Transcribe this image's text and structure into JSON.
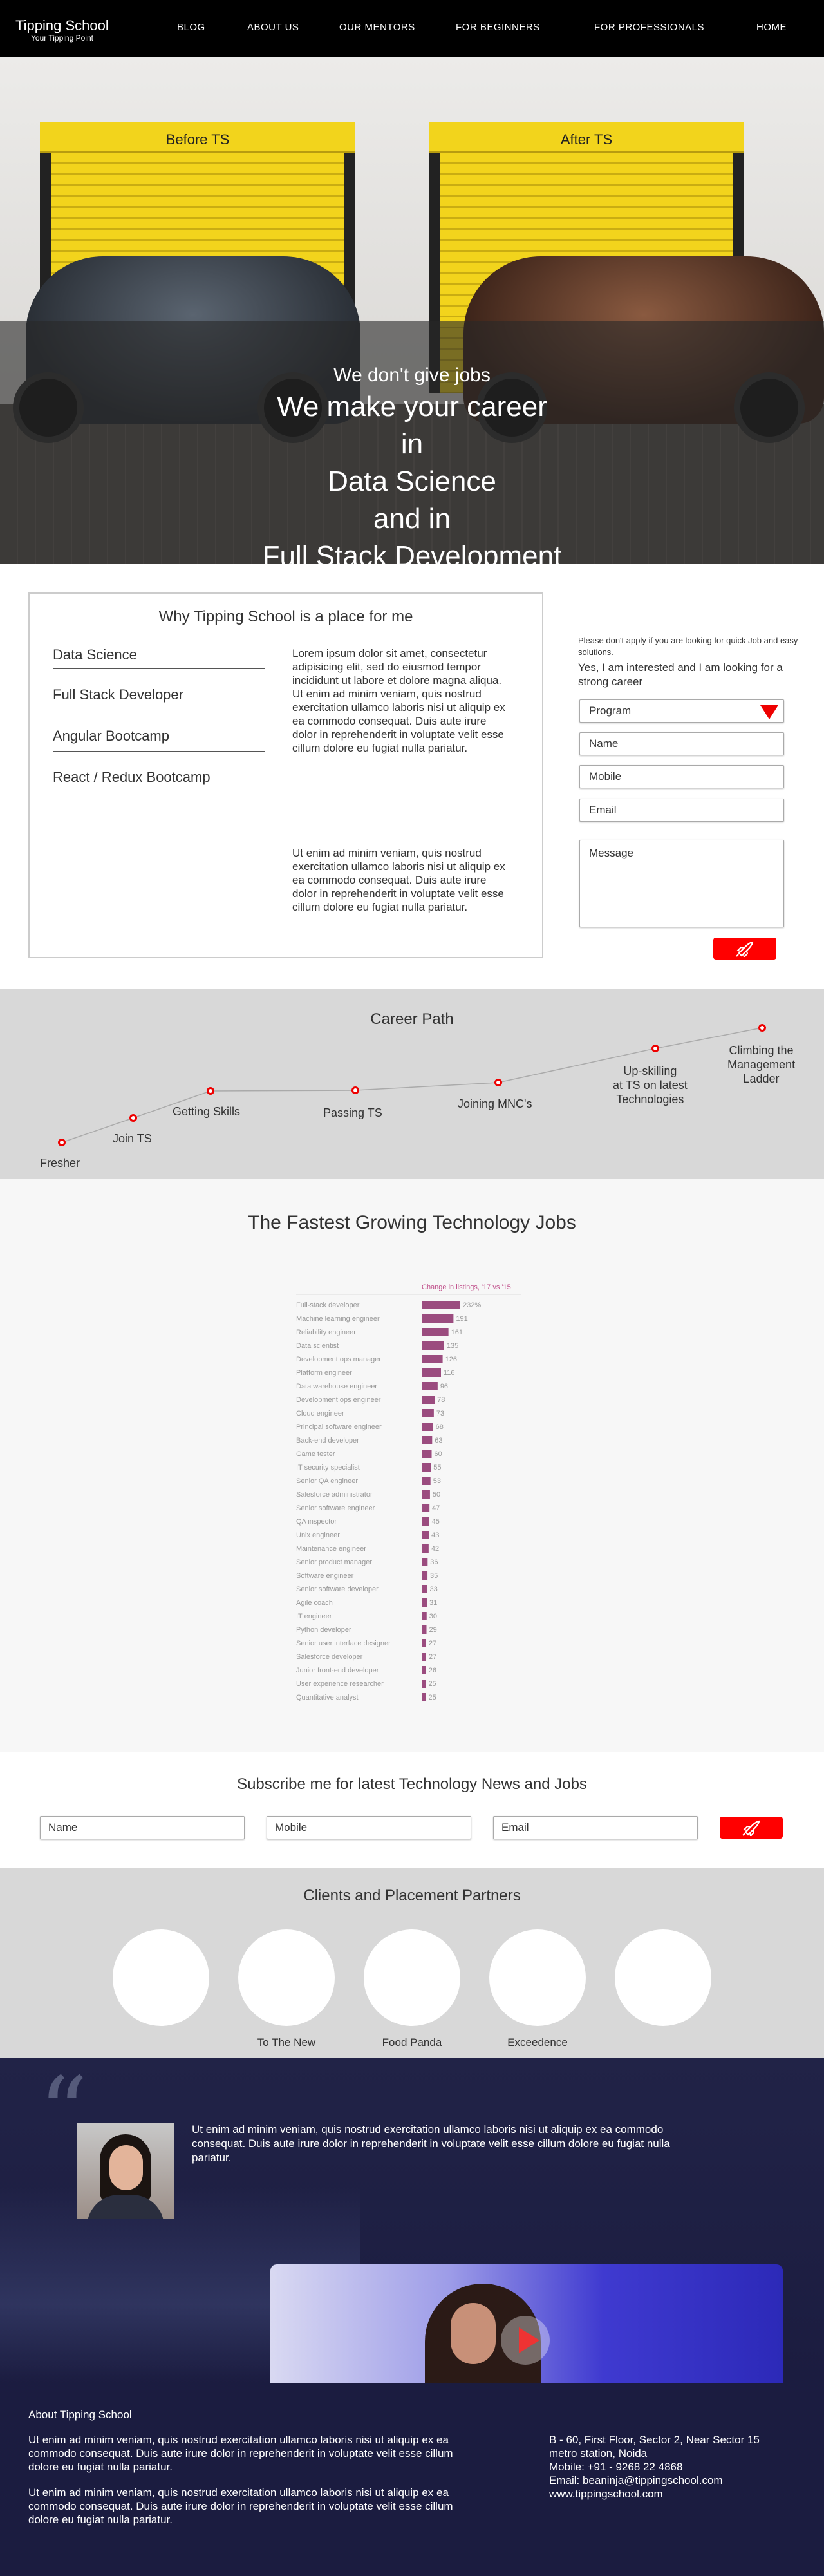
{
  "brand": {
    "title": "Tipping School",
    "tagline": "Your Tipping Point"
  },
  "nav": {
    "items": [
      "BLOG",
      "ABOUT US",
      "OUR MENTORS",
      "FOR BEGINNERS",
      "FOR PROFESSIONALS",
      "HOME"
    ]
  },
  "hero": {
    "garage_left": "Before TS",
    "garage_right": "After TS",
    "line1": "We don't give jobs",
    "line2": "We make your career",
    "line3": "in",
    "line4": "Data Science",
    "line5": "and in",
    "line6": "Full Stack Development"
  },
  "why": {
    "title": "Why Tipping School is a place for me",
    "courses": [
      "Data Science",
      "Full Stack Developer",
      "Angular Bootcamp",
      "React / Redux Bootcamp"
    ],
    "para1": "Lorem ipsum dolor sit amet, consectetur adipisicing elit, sed do eiusmod tempor incididunt ut labore et dolore magna aliqua. Ut enim ad minim veniam, quis nostrud exercitation ullamco laboris nisi ut aliquip ex ea commodo consequat. Duis aute irure dolor in reprehenderit in voluptate velit esse cillum dolore eu fugiat nulla pariatur.",
    "para2": "Ut enim ad minim veniam, quis nostrud exercitation ullamco laboris nisi ut aliquip ex ea commodo consequat. Duis aute irure dolor in reprehenderit in voluptate velit esse cillum dolore eu fugiat nulla pariatur."
  },
  "form": {
    "note": "Please don't apply if you are looking for quick Job and easy solutions.",
    "heading": "Yes, I am interested and I am looking for a strong career",
    "program": "Program",
    "name": "Name",
    "mobile": "Mobile",
    "email": "Email",
    "message": "Message"
  },
  "career": {
    "title": "Career Path",
    "steps": [
      "Fresher",
      "Join TS",
      "Getting Skills",
      "Passing TS",
      "Joining MNC's",
      "Up-skilling\nat TS on latest\nTechnologies",
      "Climbing the\nManagement\nLadder"
    ]
  },
  "jobs": {
    "title": "The Fastest Growing Technology Jobs"
  },
  "chart_data": {
    "type": "bar",
    "orientation": "horizontal",
    "title": "Change in listings, '17 vs '15",
    "categories": [
      "Full-stack developer",
      "Machine learning engineer",
      "Reliability engineer",
      "Data scientist",
      "Development ops manager",
      "Platform engineer",
      "Data warehouse engineer",
      "Development ops engineer",
      "Cloud engineer",
      "Principal software engineer",
      "Back-end developer",
      "Game tester",
      "IT security specialist",
      "Senior QA engineer",
      "Salesforce administrator",
      "Senior software engineer",
      "QA inspector",
      "Unix engineer",
      "Maintenance engineer",
      "Senior product manager",
      "Software engineer",
      "Senior software developer",
      "Agile coach",
      "IT engineer",
      "Python developer",
      "Senior user interface designer",
      "Salesforce developer",
      "Junior front-end developer",
      "User experience researcher",
      "Quantitative analyst"
    ],
    "values": [
      232,
      191,
      161,
      135,
      126,
      116,
      96,
      78,
      73,
      68,
      63,
      60,
      55,
      53,
      50,
      47,
      45,
      43,
      42,
      36,
      35,
      33,
      31,
      30,
      29,
      27,
      27,
      26,
      25,
      25
    ],
    "value_labels": [
      "232%",
      "191",
      "161",
      "135",
      "126",
      "116",
      "96",
      "78",
      "73",
      "68",
      "63",
      "60",
      "55",
      "53",
      "50",
      "47",
      "45",
      "43",
      "42",
      "36",
      "35",
      "33",
      "31",
      "30",
      "29",
      "27",
      "27",
      "26",
      "25",
      "25"
    ],
    "bar_color": "#9b4c7f",
    "title_color": "#c0508b"
  },
  "subscribe": {
    "title": "Subscribe me for latest Technology News and Jobs",
    "name": "Name",
    "mobile": "Mobile",
    "email": "Email"
  },
  "clients": {
    "title": "Clients and Placement Partners",
    "labels": [
      "",
      "To The New",
      "Food Panda",
      "Exceedence",
      ""
    ]
  },
  "testimonial": {
    "text": "Ut enim ad minim veniam, quis nostrud exercitation ullamco laboris nisi ut aliquip ex ea commodo consequat. Duis aute irure dolor in reprehenderit in voluptate velit esse cillum dolore eu fugiat nulla pariatur."
  },
  "footer": {
    "about_title": "About Tipping School",
    "para1": "Ut enim ad minim veniam, quis nostrud exercitation ullamco laboris nisi ut aliquip ex ea commodo consequat. Duis aute irure dolor in reprehenderit in voluptate velit esse cillum dolore eu fugiat nulla pariatur.",
    "para2": "Ut enim ad minim veniam, quis nostrud exercitation ullamco laboris nisi ut aliquip ex ea commodo consequat. Duis aute irure dolor in reprehenderit in voluptate velit esse cillum dolore eu fugiat nulla pariatur.",
    "address1": "B - 60, First Floor, Sector 2, Near Sector 15",
    "address2": "metro station, Noida",
    "mobile": "Mobile: +91 - 9268 22 4868",
    "email": "Email: beaninja@tippingschool.com",
    "website": "www.tippingschool.com"
  },
  "colors": {
    "accent": "#ff0000",
    "nav_bg": "#000000",
    "footer_bg": "#1b1c40"
  }
}
